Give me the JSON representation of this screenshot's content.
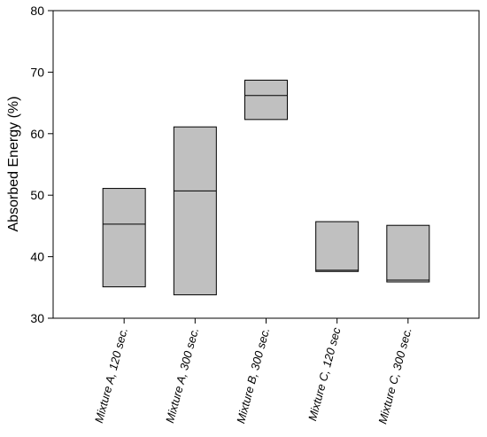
{
  "chart_data": {
    "type": "box",
    "title": "",
    "xlabel": "",
    "ylabel": "Absorbed Energy (%)",
    "ylim": [
      30,
      80
    ],
    "yticks": [
      30,
      40,
      50,
      60,
      70,
      80
    ],
    "grid": false,
    "legend": "none",
    "categories": [
      "Mixture A, 120 sec.",
      "Mixture A, 300 sec.",
      "Mixture B, 300 sec.",
      "Mixture C, 120 sec",
      "Mixture C, 300 sec."
    ],
    "boxes": [
      {
        "q1": 35.1,
        "median": 45.3,
        "q3": 51.1
      },
      {
        "q1": 33.8,
        "median": 50.7,
        "q3": 61.1
      },
      {
        "q1": 62.3,
        "median": 66.2,
        "q3": 68.7
      },
      {
        "q1": 37.6,
        "median": 37.8,
        "q3": 45.7
      },
      {
        "q1": 35.9,
        "median": 36.2,
        "q3": 45.1
      }
    ],
    "box_fill": "#c0c0c0",
    "line_color": "#000000"
  }
}
